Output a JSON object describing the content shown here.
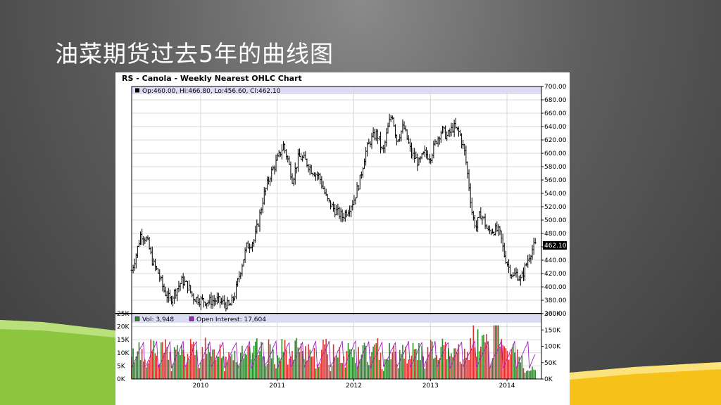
{
  "slide": {
    "title": "油菜期货过去5年的曲线图"
  },
  "colors": {
    "price_bar": "#000000",
    "volume_bar_red": "#e03030",
    "volume_bar_green": "#2a8a2a",
    "open_interest_line": "#a020c0",
    "info_band": "#dcdcf4",
    "accent_green": "#8cc63f",
    "accent_yellow": "#f6c21a"
  },
  "chart_data": {
    "type": "ohlc",
    "title": "RS - Canola - Weekly Nearest OHLC Chart",
    "ohlc_info": "Op:460.00, Hi:466.80, Lo:456.60, Cl:462.10",
    "last_price_label": "462.10",
    "price_ylim": [
      360,
      700
    ],
    "price_ticks": [
      "700.00",
      "680.00",
      "660.00",
      "640.00",
      "620.00",
      "600.00",
      "580.00",
      "560.00",
      "540.00",
      "520.00",
      "500.00",
      "480.00",
      "460.00",
      "440.00",
      "420.00",
      "400.00",
      "380.00",
      "360.00"
    ],
    "x_ticks": [
      "2010",
      "2011",
      "2012",
      "2013",
      "2014"
    ],
    "x_tick_years": [
      2010,
      2011,
      2012,
      2013,
      2014
    ],
    "x_range": [
      2009.1,
      2014.45
    ],
    "price_path": [
      [
        2009.1,
        425
      ],
      [
        2009.15,
        445
      ],
      [
        2009.22,
        480
      ],
      [
        2009.3,
        470
      ],
      [
        2009.38,
        435
      ],
      [
        2009.45,
        420
      ],
      [
        2009.52,
        395
      ],
      [
        2009.6,
        380
      ],
      [
        2009.68,
        395
      ],
      [
        2009.76,
        410
      ],
      [
        2009.84,
        400
      ],
      [
        2009.9,
        385
      ],
      [
        2010.0,
        380
      ],
      [
        2010.1,
        378
      ],
      [
        2010.2,
        380
      ],
      [
        2010.3,
        376
      ],
      [
        2010.38,
        370
      ],
      [
        2010.45,
        390
      ],
      [
        2010.52,
        425
      ],
      [
        2010.6,
        460
      ],
      [
        2010.7,
        470
      ],
      [
        2010.76,
        500
      ],
      [
        2010.82,
        535
      ],
      [
        2010.9,
        565
      ],
      [
        2011.0,
        590
      ],
      [
        2011.08,
        612
      ],
      [
        2011.14,
        590
      ],
      [
        2011.2,
        560
      ],
      [
        2011.28,
        595
      ],
      [
        2011.36,
        590
      ],
      [
        2011.45,
        575
      ],
      [
        2011.55,
        565
      ],
      [
        2011.65,
        530
      ],
      [
        2011.75,
        515
      ],
      [
        2011.85,
        505
      ],
      [
        2011.92,
        515
      ],
      [
        2012.0,
        530
      ],
      [
        2012.08,
        560
      ],
      [
        2012.15,
        600
      ],
      [
        2012.22,
        620
      ],
      [
        2012.3,
        630
      ],
      [
        2012.38,
        600
      ],
      [
        2012.45,
        640
      ],
      [
        2012.5,
        660
      ],
      [
        2012.56,
        620
      ],
      [
        2012.65,
        640
      ],
      [
        2012.75,
        600
      ],
      [
        2012.85,
        585
      ],
      [
        2012.92,
        600
      ],
      [
        2013.0,
        595
      ],
      [
        2013.08,
        620
      ],
      [
        2013.15,
        635
      ],
      [
        2013.22,
        625
      ],
      [
        2013.3,
        640
      ],
      [
        2013.38,
        630
      ],
      [
        2013.45,
        600
      ],
      [
        2013.5,
        555
      ],
      [
        2013.55,
        505
      ],
      [
        2013.6,
        490
      ],
      [
        2013.65,
        510
      ],
      [
        2013.7,
        500
      ],
      [
        2013.75,
        482
      ],
      [
        2013.8,
        485
      ],
      [
        2013.88,
        485
      ],
      [
        2013.92,
        475
      ],
      [
        2013.96,
        450
      ],
      [
        2014.02,
        430
      ],
      [
        2014.08,
        415
      ],
      [
        2014.12,
        420
      ],
      [
        2014.18,
        410
      ],
      [
        2014.24,
        430
      ],
      [
        2014.3,
        450
      ],
      [
        2014.36,
        462
      ]
    ],
    "volume": {
      "info_label": "Vol: 3,948",
      "oi_label": "Open Interest: 17,604",
      "left_ticks": [
        "25K",
        "20K",
        "15K",
        "10K",
        "5K",
        "0K"
      ],
      "left_values": [
        25000,
        20000,
        15000,
        10000,
        5000,
        0
      ],
      "right_ticks": [
        "200K",
        "150K",
        "100K",
        "50K",
        "0K"
      ],
      "right_values": [
        200000,
        150000,
        100000,
        50000,
        0
      ],
      "ylim_left": [
        0,
        25000
      ],
      "ylim_right": [
        0,
        200000
      ]
    }
  }
}
